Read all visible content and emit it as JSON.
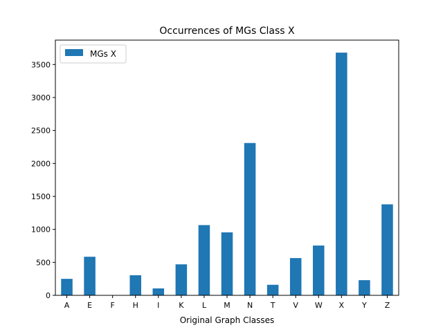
{
  "chart_data": {
    "type": "bar",
    "title": "Occurrences of MGs Class X",
    "xlabel": "Original Graph Classes",
    "ylabel": "",
    "categories": [
      "A",
      "E",
      "F",
      "H",
      "I",
      "K",
      "L",
      "M",
      "N",
      "T",
      "V",
      "W",
      "X",
      "Y",
      "Z"
    ],
    "series": [
      {
        "name": "MGs X",
        "color": "#1f77b4",
        "values": [
          250,
          585,
          0,
          305,
          105,
          470,
          1065,
          955,
          2310,
          160,
          565,
          755,
          3680,
          230,
          1380
        ]
      }
    ],
    "ylim": [
      0,
      3870
    ],
    "yticks": [
      0,
      500,
      1000,
      1500,
      2000,
      2500,
      3000,
      3500
    ],
    "legend_position": "top-left",
    "grid": false
  }
}
